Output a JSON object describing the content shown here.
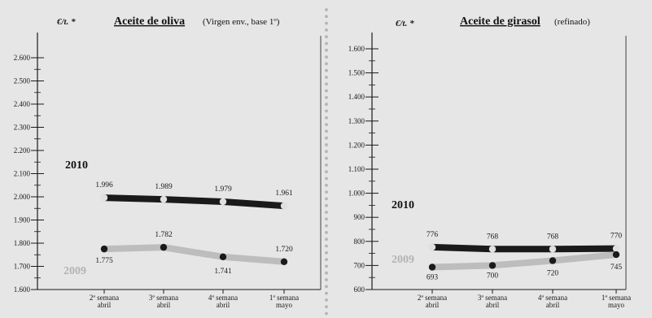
{
  "chart_data": [
    {
      "type": "line",
      "title": "Aceite de oliva",
      "subtitle": "(Virgen env., base 1º)",
      "unit": "€/t. *",
      "ylim": [
        1600,
        2600
      ],
      "yticks": [
        "2.600",
        "2.500",
        "2.400",
        "2.300",
        "2.200",
        "2.100",
        "2.000",
        "1.900",
        "1.800",
        "1.700",
        "1.600"
      ],
      "categories": [
        [
          "2ª semana",
          "abril"
        ],
        [
          "3ª semana",
          "abril"
        ],
        [
          "4ª semana",
          "abril"
        ],
        [
          "1ª semana",
          "mayo"
        ]
      ],
      "series": [
        {
          "name": "2010",
          "values": [
            1996,
            1989,
            1979,
            1961
          ],
          "labels": [
            "1.996",
            "1.989",
            "1.979",
            "1.961"
          ],
          "color": "#1a1a1a",
          "marker": "#e0e0e0"
        },
        {
          "name": "2009",
          "values": [
            1775,
            1782,
            1741,
            1720
          ],
          "labels": [
            "1.775",
            "1.782",
            "1.741",
            "1.720"
          ],
          "color": "#bdbdbd",
          "marker": "#1a1a1a"
        }
      ]
    },
    {
      "type": "line",
      "title": "Aceite de girasol",
      "subtitle": "(refinado)",
      "unit": "€/t. *",
      "ylim": [
        600,
        1600
      ],
      "yticks": [
        "1.600",
        "1.500",
        "1.400",
        "1.300",
        "1.200",
        "1.100",
        "1.000",
        "900",
        "800",
        "700",
        "600"
      ],
      "categories": [
        [
          "2ª semana",
          "abril"
        ],
        [
          "3ª semana",
          "abril"
        ],
        [
          "4ª semana",
          "abril"
        ],
        [
          "1ª semana",
          "mayo"
        ]
      ],
      "series": [
        {
          "name": "2010",
          "values": [
            776,
            768,
            768,
            770
          ],
          "labels": [
            "776",
            "768",
            "768",
            "770"
          ],
          "color": "#1a1a1a",
          "marker": "#e0e0e0"
        },
        {
          "name": "2009",
          "values": [
            693,
            700,
            720,
            745
          ],
          "labels": [
            "693",
            "700",
            "720",
            "745"
          ],
          "color": "#bdbdbd",
          "marker": "#1a1a1a"
        }
      ]
    }
  ]
}
